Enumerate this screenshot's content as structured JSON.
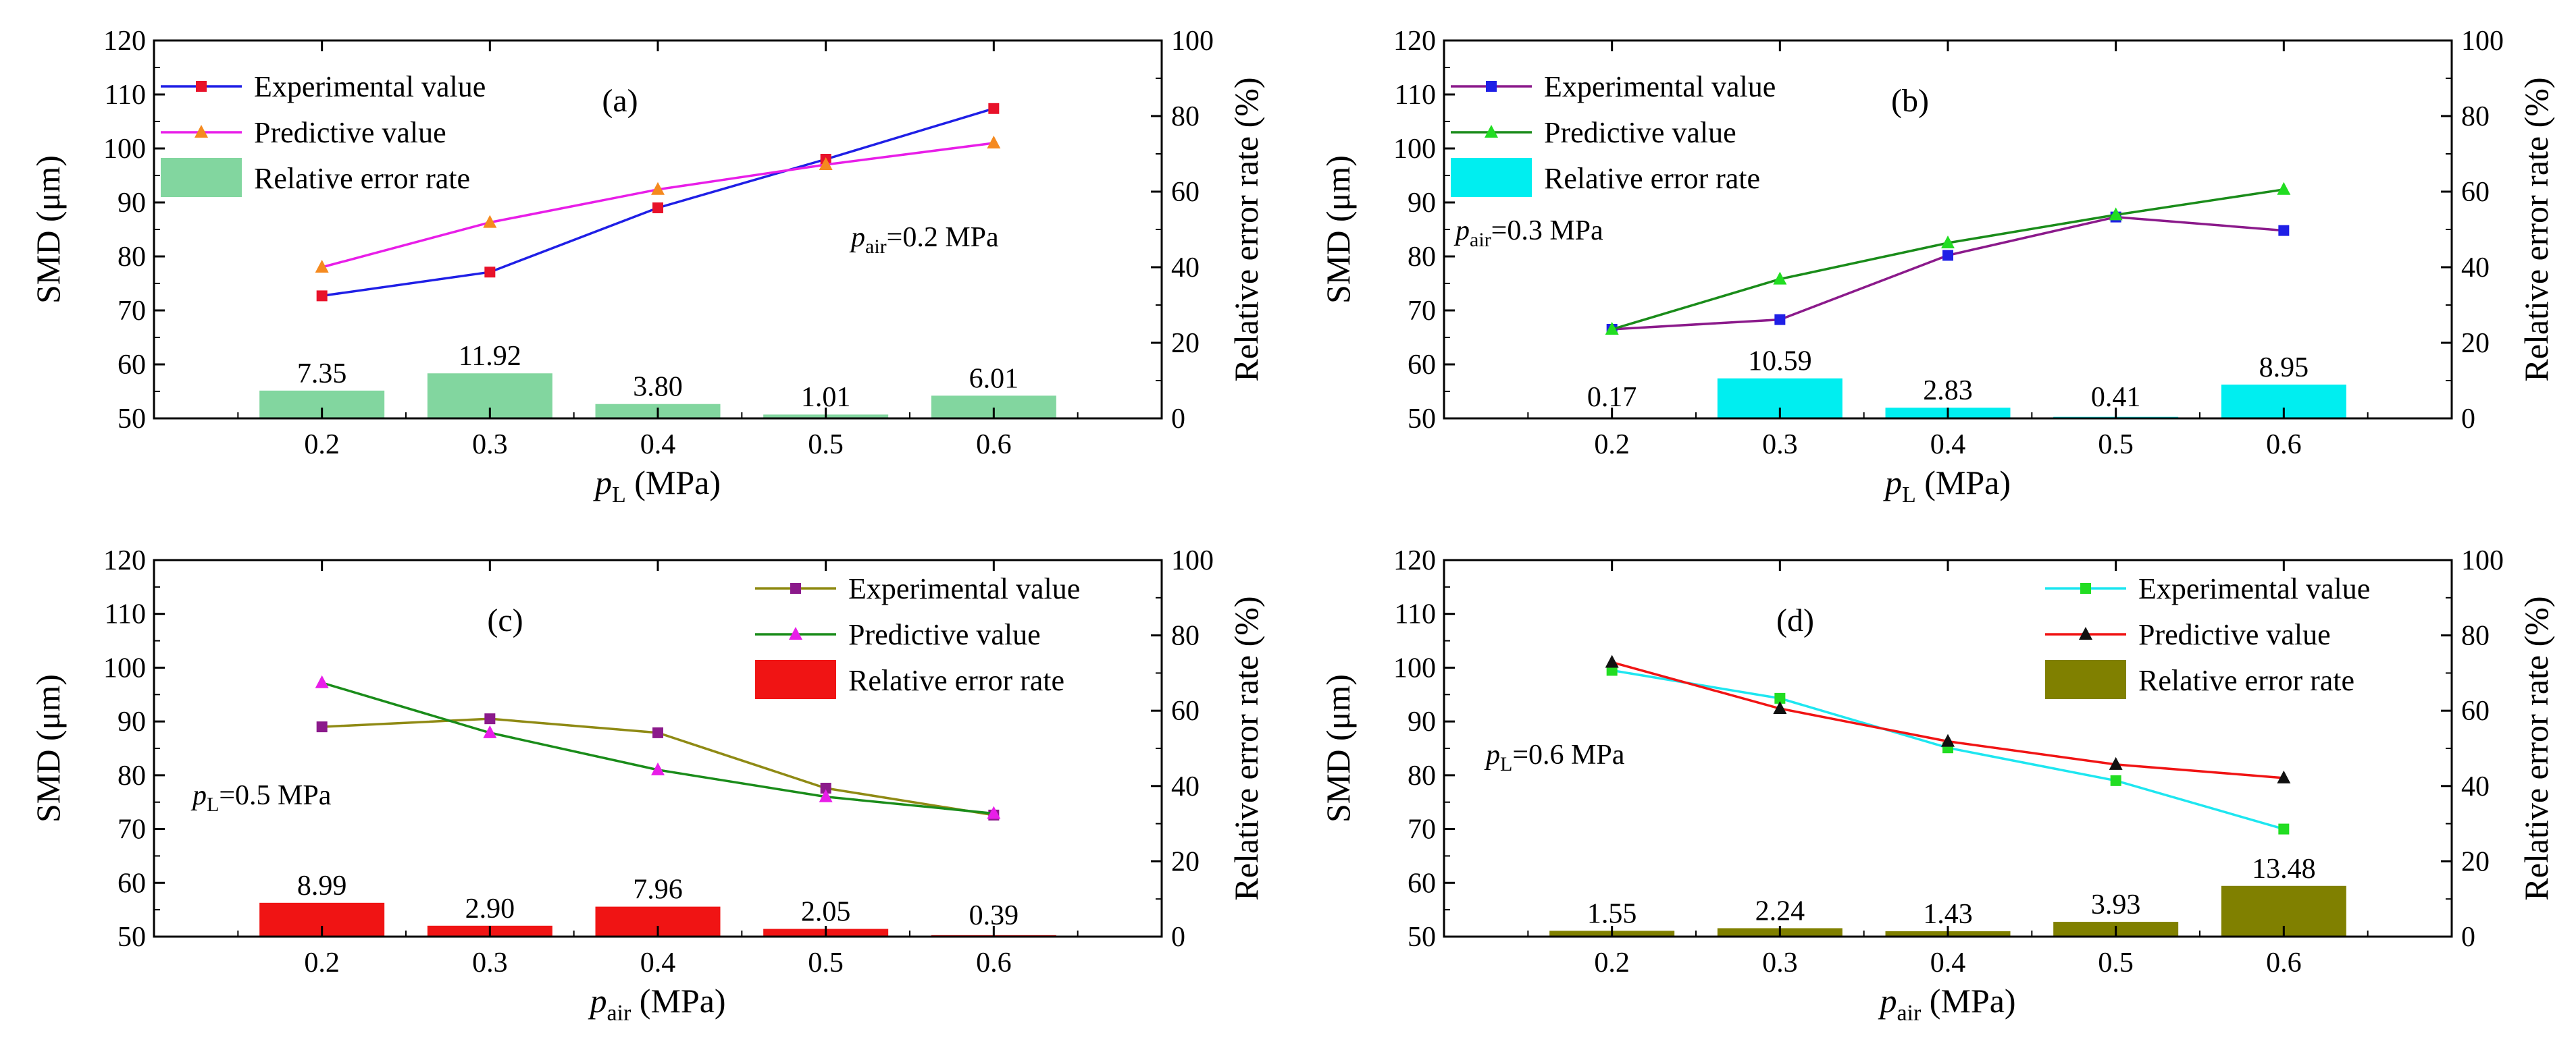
{
  "chart_data": [
    {
      "type": "line+bar",
      "panel_label": "(a)",
      "x": [
        0.2,
        0.3,
        0.4,
        0.5,
        0.6
      ],
      "xticks": [
        "0.2",
        "0.3",
        "0.4",
        "0.5",
        "0.6"
      ],
      "xlabel": {
        "var": "p",
        "sub": "L",
        "unit": " (MPa)"
      },
      "ylabel": "SMD (μm)",
      "y2label": "Relative error rate (%)",
      "ylim": [
        50,
        120
      ],
      "y2lim": [
        0,
        100
      ],
      "yticks": [
        "50",
        "60",
        "70",
        "80",
        "90",
        "100",
        "110",
        "120"
      ],
      "y2ticks": [
        "0",
        "20",
        "40",
        "60",
        "80",
        "100"
      ],
      "annotation": {
        "var": "p",
        "sub": "air",
        "text": "=0.2 MPa"
      },
      "legend_position": "top-left",
      "legend": [
        "Experimental value",
        "Predictive value",
        "Relative error rate"
      ],
      "series": [
        {
          "name": "Experimental value",
          "color": "#1f1fe6",
          "marker": "square",
          "marker_color": "#e8122a",
          "values": [
            72.7,
            77.1,
            89.0,
            98.0,
            107.4
          ]
        },
        {
          "name": "Predictive value",
          "color": "#e81ee8",
          "marker": "triangle",
          "marker_color": "#f58a1f",
          "values": [
            78.0,
            86.3,
            92.4,
            97.0,
            101.0
          ]
        }
      ],
      "bars": {
        "name": "Relative error rate",
        "color": "#82d69f",
        "values": [
          7.35,
          11.92,
          3.8,
          1.01,
          6.01
        ],
        "labels": [
          "7.35",
          "11.92",
          "3.80",
          "1.01",
          "6.01"
        ]
      }
    },
    {
      "type": "line+bar",
      "panel_label": "(b)",
      "x": [
        0.2,
        0.3,
        0.4,
        0.5,
        0.6
      ],
      "xticks": [
        "0.2",
        "0.3",
        "0.4",
        "0.5",
        "0.6"
      ],
      "xlabel": {
        "var": "p",
        "sub": "L",
        "unit": " (MPa)"
      },
      "ylabel": "SMD (μm)",
      "y2label": "Relative error rate (%)",
      "ylim": [
        50,
        120
      ],
      "y2lim": [
        0,
        100
      ],
      "yticks": [
        "50",
        "60",
        "70",
        "80",
        "90",
        "100",
        "110",
        "120"
      ],
      "y2ticks": [
        "0",
        "20",
        "40",
        "60",
        "80",
        "100"
      ],
      "annotation": {
        "var": "p",
        "sub": "air",
        "text": "=0.3 MPa"
      },
      "legend_position": "top-left",
      "legend": [
        "Experimental value",
        "Predictive value",
        "Relative error rate"
      ],
      "series": [
        {
          "name": "Experimental value",
          "color": "#8b1a8b",
          "marker": "square",
          "marker_color": "#1f1fe6",
          "values": [
            66.5,
            68.3,
            80.2,
            87.3,
            84.8
          ]
        },
        {
          "name": "Predictive value",
          "color": "#1a8c1a",
          "marker": "triangle",
          "marker_color": "#22dd22",
          "values": [
            66.5,
            75.8,
            82.5,
            87.7,
            92.4
          ]
        }
      ],
      "bars": {
        "name": "Relative error rate",
        "color": "#00eef0",
        "values": [
          0.17,
          10.59,
          2.83,
          0.41,
          8.95
        ],
        "labels": [
          "0.17",
          "10.59",
          "2.83",
          "0.41",
          "8.95"
        ]
      }
    },
    {
      "type": "line+bar",
      "panel_label": "(c)",
      "x": [
        0.2,
        0.3,
        0.4,
        0.5,
        0.6
      ],
      "xticks": [
        "0.2",
        "0.3",
        "0.4",
        "0.5",
        "0.6"
      ],
      "xlabel": {
        "var": "p",
        "sub": "air",
        "unit": " (MPa)"
      },
      "ylabel": "SMD (μm)",
      "y2label": "Relative error rate (%)",
      "ylim": [
        50,
        120
      ],
      "y2lim": [
        0,
        100
      ],
      "yticks": [
        "50",
        "60",
        "70",
        "80",
        "90",
        "100",
        "110",
        "120"
      ],
      "y2ticks": [
        "0",
        "20",
        "40",
        "60",
        "80",
        "100"
      ],
      "annotation": {
        "var": "p",
        "sub": "L",
        "text": "=0.5 MPa"
      },
      "legend_position": "top-right",
      "legend": [
        "Experimental value",
        "Predictive value",
        "Relative error rate"
      ],
      "series": [
        {
          "name": "Experimental value",
          "color": "#8f8a14",
          "marker": "square",
          "marker_color": "#8b1a8b",
          "values": [
            89.0,
            90.5,
            87.9,
            77.6,
            72.6
          ]
        },
        {
          "name": "Predictive value",
          "color": "#1a8c1a",
          "marker": "triangle",
          "marker_color": "#e81ee8",
          "values": [
            97.2,
            87.9,
            81.0,
            76.0,
            72.9
          ]
        }
      ],
      "bars": {
        "name": "Relative error rate",
        "color": "#f01414",
        "values": [
          8.99,
          2.9,
          7.96,
          2.05,
          0.39
        ],
        "labels": [
          "8.99",
          "2.90",
          "7.96",
          "2.05",
          "0.39"
        ]
      }
    },
    {
      "type": "line+bar",
      "panel_label": "(d)",
      "x": [
        0.2,
        0.3,
        0.4,
        0.5,
        0.6
      ],
      "xticks": [
        "0.2",
        "0.3",
        "0.4",
        "0.5",
        "0.6"
      ],
      "xlabel": {
        "var": "p",
        "sub": "air",
        "unit": " (MPa)"
      },
      "ylabel": "SMD (μm)",
      "y2label": "Relative error rate (%)",
      "ylim": [
        50,
        120
      ],
      "y2lim": [
        0,
        100
      ],
      "yticks": [
        "50",
        "60",
        "70",
        "80",
        "90",
        "100",
        "110",
        "120"
      ],
      "y2ticks": [
        "0",
        "20",
        "40",
        "60",
        "80",
        "100"
      ],
      "annotation": {
        "var": "p",
        "sub": "L",
        "text": "=0.6 MPa"
      },
      "legend_position": "top-right",
      "legend": [
        "Experimental value",
        "Predictive value",
        "Relative error rate"
      ],
      "series": [
        {
          "name": "Experimental value",
          "color": "#1ee6f0",
          "marker": "square",
          "marker_color": "#22dd22",
          "values": [
            99.5,
            94.3,
            85.1,
            79.0,
            70.0
          ]
        },
        {
          "name": "Predictive value",
          "color": "#f01414",
          "marker": "triangle",
          "marker_color": "#111111",
          "values": [
            101.0,
            92.4,
            86.3,
            82.0,
            79.5
          ]
        }
      ],
      "bars": {
        "name": "Relative error rate",
        "color": "#808000",
        "values": [
          1.55,
          2.24,
          1.43,
          3.93,
          13.48
        ],
        "labels": [
          "1.55",
          "2.24",
          "1.43",
          "3.93",
          "13.48"
        ]
      }
    }
  ]
}
